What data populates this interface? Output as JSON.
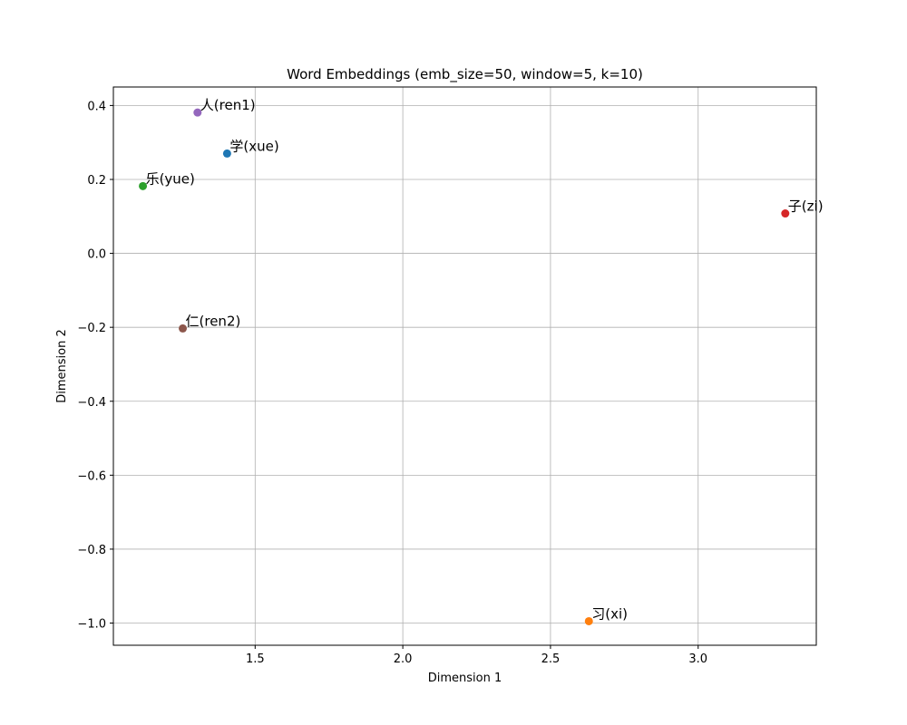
{
  "chart_data": {
    "type": "scatter",
    "title": "Word Embeddings (emb_size=50, window=5, k=10)",
    "xlabel": "Dimension 1",
    "ylabel": "Dimension 2",
    "xlim": [
      1.02,
      3.4
    ],
    "ylim": [
      -1.06,
      0.45
    ],
    "xticks": [
      1.5,
      2.0,
      2.5,
      3.0
    ],
    "yticks": [
      0.4,
      0.2,
      0.0,
      -0.2,
      -0.4,
      -0.6,
      -0.8,
      -1.0
    ],
    "xtick_labels": [
      "1.5",
      "2.0",
      "2.5",
      "3.0"
    ],
    "ytick_labels": [
      "0.4",
      "0.2",
      "0.0",
      "−0.2",
      "−0.4",
      "−0.6",
      "−0.8",
      "−1.0"
    ],
    "grid": true,
    "points": [
      {
        "label": "学(xue)",
        "x": 1.405,
        "y": 0.27,
        "color": "#1f77b4"
      },
      {
        "label": "习(xi)",
        "x": 2.63,
        "y": -0.995,
        "color": "#ff7f0e"
      },
      {
        "label": "乐(yue)",
        "x": 1.12,
        "y": 0.182,
        "color": "#2ca02c"
      },
      {
        "label": "子(zi)",
        "x": 3.295,
        "y": 0.108,
        "color": "#d62728"
      },
      {
        "label": "人(ren1)",
        "x": 1.305,
        "y": 0.381,
        "color": "#9467bd"
      },
      {
        "label": "仁(ren2)",
        "x": 1.255,
        "y": -0.203,
        "color": "#8c564b"
      }
    ]
  }
}
